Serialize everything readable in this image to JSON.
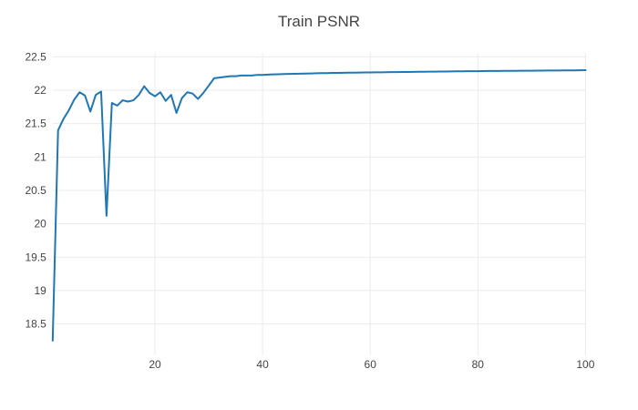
{
  "chart_data": {
    "type": "line",
    "title": "Train PSNR",
    "xlabel": "",
    "ylabel": "",
    "xlim": [
      1,
      100
    ],
    "ylim": [
      18.03,
      22.56
    ],
    "grid": true,
    "legend_position": "none",
    "line_color": "#1f77b4",
    "grid_color": "#ebebeb",
    "text_color": "#444444",
    "background_color": "#ffffff",
    "x_ticks": [
      {
        "value": 20,
        "label": "20"
      },
      {
        "value": 40,
        "label": "40"
      },
      {
        "value": 60,
        "label": "60"
      },
      {
        "value": 80,
        "label": "80"
      },
      {
        "value": 100,
        "label": "100"
      }
    ],
    "y_ticks": [
      {
        "value": 18.5,
        "label": "18.5"
      },
      {
        "value": 19,
        "label": "19"
      },
      {
        "value": 19.5,
        "label": "19.5"
      },
      {
        "value": 20,
        "label": "20"
      },
      {
        "value": 20.5,
        "label": "20.5"
      },
      {
        "value": 21,
        "label": "21"
      },
      {
        "value": 21.5,
        "label": "21.5"
      },
      {
        "value": 22,
        "label": "22"
      },
      {
        "value": 22.5,
        "label": "22.5"
      }
    ],
    "series": [
      {
        "name": "Train PSNR",
        "points": [
          [
            1,
            18.25
          ],
          [
            2,
            21.4
          ],
          [
            3,
            21.57
          ],
          [
            4,
            21.7
          ],
          [
            5,
            21.86
          ],
          [
            6,
            21.97
          ],
          [
            7,
            21.92
          ],
          [
            8,
            21.68
          ],
          [
            9,
            21.93
          ],
          [
            10,
            21.98
          ],
          [
            11,
            20.12
          ],
          [
            12,
            21.81
          ],
          [
            13,
            21.77
          ],
          [
            14,
            21.85
          ],
          [
            15,
            21.83
          ],
          [
            16,
            21.85
          ],
          [
            17,
            21.93
          ],
          [
            18,
            22.06
          ],
          [
            19,
            21.96
          ],
          [
            20,
            21.91
          ],
          [
            21,
            21.97
          ],
          [
            22,
            21.84
          ],
          [
            23,
            21.93
          ],
          [
            24,
            21.66
          ],
          [
            25,
            21.88
          ],
          [
            26,
            21.97
          ],
          [
            27,
            21.95
          ],
          [
            28,
            21.87
          ],
          [
            29,
            21.96
          ],
          [
            30,
            22.07
          ],
          [
            31,
            22.18
          ],
          [
            32,
            22.19
          ],
          [
            33,
            22.2
          ],
          [
            34,
            22.21
          ],
          [
            35,
            22.21
          ],
          [
            36,
            22.22
          ],
          [
            37,
            22.22
          ],
          [
            38,
            22.22
          ],
          [
            39,
            22.23
          ],
          [
            40,
            22.23
          ],
          [
            41,
            22.234
          ],
          [
            42,
            22.237
          ],
          [
            43,
            22.24
          ],
          [
            44,
            22.242
          ],
          [
            45,
            22.244
          ],
          [
            46,
            22.246
          ],
          [
            47,
            22.248
          ],
          [
            48,
            22.25
          ],
          [
            49,
            22.252
          ],
          [
            50,
            22.254
          ],
          [
            51,
            22.256
          ],
          [
            52,
            22.257
          ],
          [
            53,
            22.259
          ],
          [
            54,
            22.26
          ],
          [
            55,
            22.262
          ],
          [
            56,
            22.263
          ],
          [
            57,
            22.264
          ],
          [
            58,
            22.265
          ],
          [
            59,
            22.266
          ],
          [
            60,
            22.267
          ],
          [
            61,
            22.268
          ],
          [
            62,
            22.269
          ],
          [
            63,
            22.27
          ],
          [
            64,
            22.271
          ],
          [
            65,
            22.272
          ],
          [
            66,
            22.273
          ],
          [
            67,
            22.274
          ],
          [
            68,
            22.275
          ],
          [
            69,
            22.276
          ],
          [
            70,
            22.277
          ],
          [
            71,
            22.278
          ],
          [
            72,
            22.279
          ],
          [
            73,
            22.28
          ],
          [
            74,
            22.281
          ],
          [
            75,
            22.282
          ],
          [
            76,
            22.283
          ],
          [
            77,
            22.284
          ],
          [
            78,
            22.285
          ],
          [
            79,
            22.285
          ],
          [
            80,
            22.286
          ],
          [
            81,
            22.287
          ],
          [
            82,
            22.288
          ],
          [
            83,
            22.288
          ],
          [
            84,
            22.289
          ],
          [
            85,
            22.29
          ],
          [
            86,
            22.29
          ],
          [
            87,
            22.291
          ],
          [
            88,
            22.292
          ],
          [
            89,
            22.292
          ],
          [
            90,
            22.293
          ],
          [
            91,
            22.294
          ],
          [
            92,
            22.294
          ],
          [
            93,
            22.295
          ],
          [
            94,
            22.296
          ],
          [
            95,
            22.296
          ],
          [
            96,
            22.297
          ],
          [
            97,
            22.298
          ],
          [
            98,
            22.298
          ],
          [
            99,
            22.299
          ],
          [
            100,
            22.3
          ]
        ]
      }
    ]
  }
}
